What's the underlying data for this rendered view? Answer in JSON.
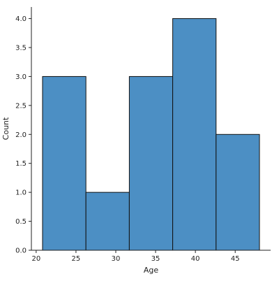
{
  "chart_data": {
    "type": "bar",
    "subtype": "histogram",
    "bins": [
      {
        "start": 20.8,
        "end": 26.25,
        "count": 3
      },
      {
        "start": 26.25,
        "end": 31.7,
        "count": 1
      },
      {
        "start": 31.7,
        "end": 37.15,
        "count": 3
      },
      {
        "start": 37.15,
        "end": 42.6,
        "count": 4
      },
      {
        "start": 42.6,
        "end": 48.05,
        "count": 2
      }
    ],
    "xlabel": "Age",
    "ylabel": "Count",
    "xlim": [
      19.4,
      49.45
    ],
    "ylim": [
      0,
      4.2
    ],
    "xticks": [
      "20",
      "25",
      "30",
      "35",
      "40",
      "45"
    ],
    "xtick_values": [
      20,
      25,
      30,
      35,
      40,
      45
    ],
    "yticks": [
      "0.0",
      "0.5",
      "1.0",
      "1.5",
      "2.0",
      "2.5",
      "3.0",
      "3.5",
      "4.0"
    ],
    "ytick_values": [
      0,
      0.5,
      1,
      1.5,
      2,
      2.5,
      3,
      3.5,
      4
    ],
    "grid": false,
    "colors": {
      "bar_fill": "#4c8fc4",
      "bar_edge": "#111111",
      "axis": "#222222"
    }
  }
}
